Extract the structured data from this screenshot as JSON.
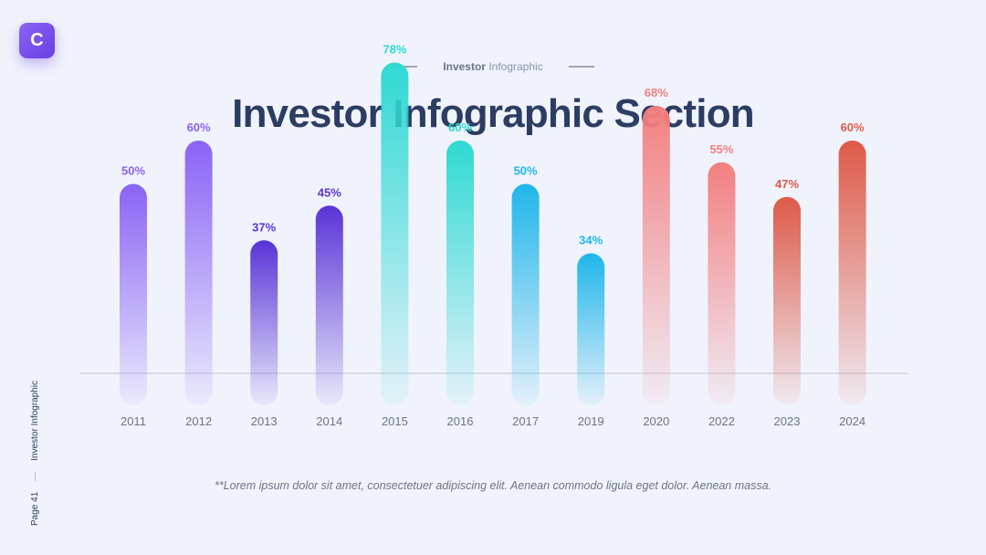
{
  "logo": {
    "letter": "C"
  },
  "header": {
    "subtitle_bold": "Investor",
    "subtitle_rest": " Infographic",
    "title": "Investor Infographic Section"
  },
  "footnote": "**Lorem ipsum dolor sit amet, consectetuer adipiscing elit. Aenean commodo ligula eget dolor. Aenean massa.",
  "side": {
    "page": "Page 41",
    "label": "Investor Infographic"
  },
  "chart_data": {
    "type": "bar",
    "title": "",
    "xlabel": "",
    "ylabel": "",
    "ylim": [
      0,
      100
    ],
    "grid": false,
    "categories": [
      "2011",
      "2012",
      "2013",
      "2014",
      "2015",
      "2016",
      "2017",
      "2019",
      "2020",
      "2022",
      "2023",
      "2024"
    ],
    "values": [
      50,
      60,
      37,
      45,
      78,
      60,
      50,
      34,
      68,
      55,
      47,
      60
    ],
    "value_labels": [
      "50%",
      "60%",
      "37%",
      "45%",
      "78%",
      "60%",
      "50%",
      "34%",
      "68%",
      "55%",
      "47%",
      "60%"
    ],
    "colors": [
      "#8a63f5",
      "#8a63f5",
      "#5a34d6",
      "#5a34d6",
      "#2fd9d3",
      "#2fd9d3",
      "#1fb6ea",
      "#1fb6ea",
      "#f27f80",
      "#f27f80",
      "#dd5a48",
      "#dd5a48"
    ]
  }
}
